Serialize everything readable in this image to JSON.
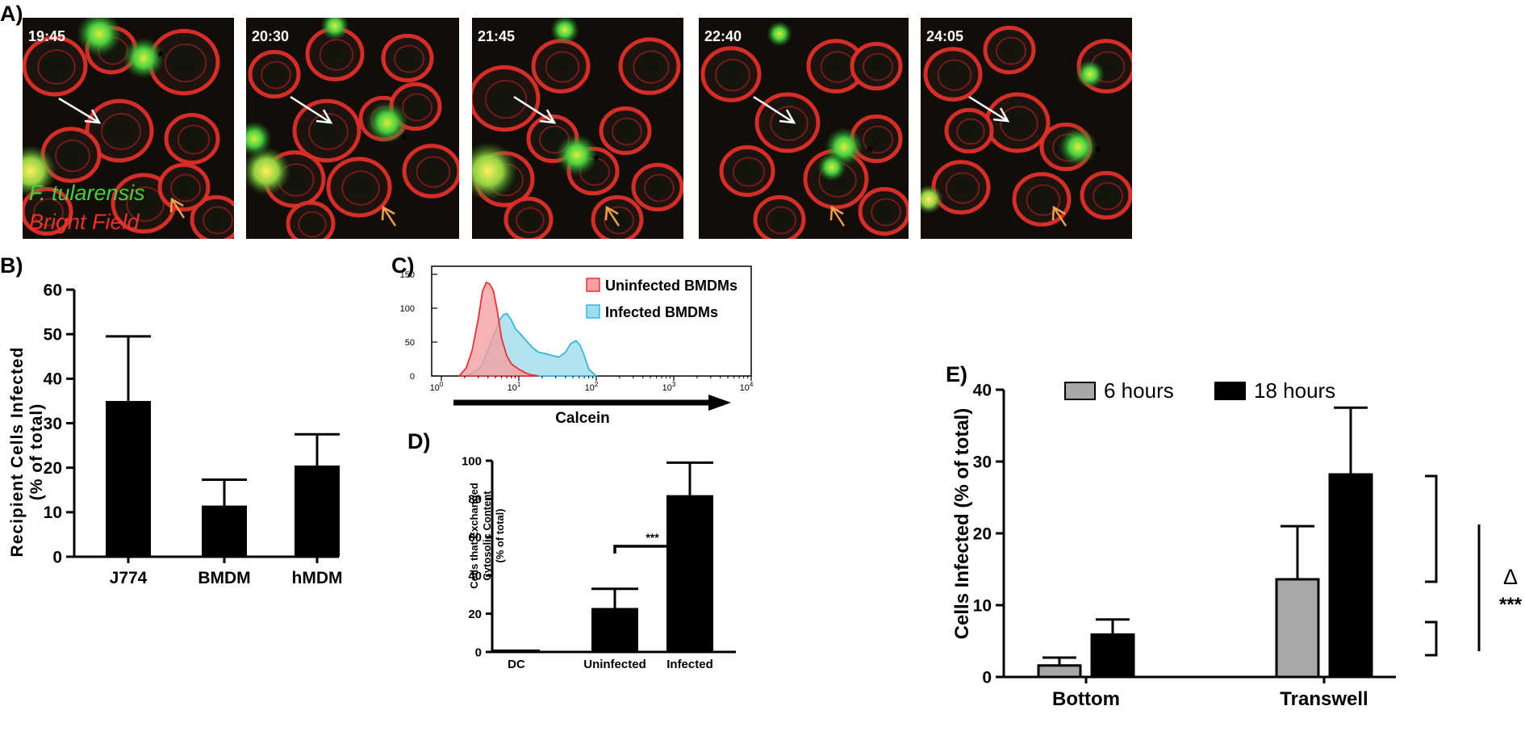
{
  "panels": {
    "a": {
      "label": "A)",
      "frames": [
        {
          "time": "19:45"
        },
        {
          "time": "20:30"
        },
        {
          "time": "21:45"
        },
        {
          "time": "22:40"
        },
        {
          "time": "24:05"
        }
      ],
      "legend": {
        "green": "F. tularensis",
        "red": "Bright Field",
        "marker": "*"
      },
      "colors": {
        "green": "#45d040",
        "red": "#e8322c",
        "arrow_white": "#ffffff",
        "arrow_orange": "#f0a050"
      }
    },
    "b": {
      "label": "B)"
    },
    "c": {
      "label": "C)"
    },
    "d": {
      "label": "D)"
    },
    "e": {
      "label": "E)"
    }
  },
  "chart_data": [
    {
      "id": "B",
      "type": "bar",
      "categories": [
        "J774",
        "BMDM",
        "hMDM"
      ],
      "values": [
        35,
        11.5,
        20.5
      ],
      "errors": [
        14.5,
        5.8,
        7
      ],
      "ylabel": "Recipient Cells Infected (% of total)",
      "ylabel_lines": [
        "Recipient Cells Infected",
        "(% of total)"
      ],
      "ylim": [
        0,
        60
      ],
      "yticks": [
        0,
        10,
        20,
        30,
        40,
        50,
        60
      ],
      "bar_color": "#000000"
    },
    {
      "id": "C",
      "type": "area",
      "xscale": "log",
      "xlim": [
        1,
        10000
      ],
      "xticks_base": "10",
      "xticks_exp": [
        "0",
        "1",
        "2",
        "3",
        "4"
      ],
      "ylim": [
        0,
        150
      ],
      "yticks": [
        0,
        50,
        100,
        150
      ],
      "xlabel": "Calcein",
      "series": [
        {
          "name": "Uninfected BMDMs",
          "color": "#e83238",
          "fill": "#f4a0a2",
          "x": [
            1.7,
            2.1,
            2.5,
            3,
            3.4,
            3.8,
            4.2,
            4.7,
            5.3,
            6,
            7,
            8,
            10,
            12,
            14,
            16,
            18
          ],
          "y": [
            0,
            12,
            38,
            85,
            125,
            138,
            136,
            126,
            95,
            55,
            30,
            18,
            10,
            5,
            2,
            1,
            0
          ]
        },
        {
          "name": "Infected BMDMs",
          "color": "#30b8e0",
          "fill": "#a0dcea",
          "x": [
            2,
            2.6,
            3.3,
            4,
            4.8,
            5.6,
            6.3,
            7,
            8,
            9,
            10.5,
            12.5,
            15,
            18,
            22,
            27,
            33,
            40,
            47,
            55,
            62,
            70,
            80,
            100
          ],
          "y": [
            0,
            5,
            15,
            38,
            62,
            82,
            90,
            92,
            83,
            70,
            62,
            52,
            42,
            35,
            33,
            30,
            28,
            35,
            48,
            52,
            45,
            30,
            10,
            0
          ]
        }
      ]
    },
    {
      "id": "D",
      "type": "bar",
      "categories": [
        "DC",
        "Uninfected",
        "Infected"
      ],
      "values": [
        1,
        23,
        82
      ],
      "errors": [
        0,
        10,
        17
      ],
      "ylabel": "Cells that Exchanged Cytosolic Content (% of total)",
      "ylabel_lines": [
        "Cells that Exchanged",
        "Cytosolic Content",
        "(% of total)"
      ],
      "ylim": [
        0,
        100
      ],
      "yticks": [
        0,
        20,
        40,
        60,
        80,
        100
      ],
      "significance": {
        "from": "Uninfected",
        "to": "Infected",
        "label": "***"
      },
      "bar_color": "#000000"
    },
    {
      "id": "E",
      "type": "bar",
      "categories": [
        "Bottom",
        "Transwell"
      ],
      "series": [
        {
          "name": "6 hours",
          "color": "#a8a8a8",
          "values": [
            1.6,
            13.6
          ],
          "errors": [
            1.1,
            7.4
          ]
        },
        {
          "name": "18 hours",
          "color": "#000000",
          "values": [
            5.9,
            28.2
          ],
          "errors": [
            2.1,
            9.3
          ]
        }
      ],
      "ylabel": "Cells Infected (% of total)",
      "ylim": [
        0,
        40
      ],
      "yticks": [
        0,
        10,
        20,
        30,
        40
      ],
      "legend": "top",
      "annotation": {
        "symbol": "Δ",
        "stars": "***"
      }
    }
  ]
}
